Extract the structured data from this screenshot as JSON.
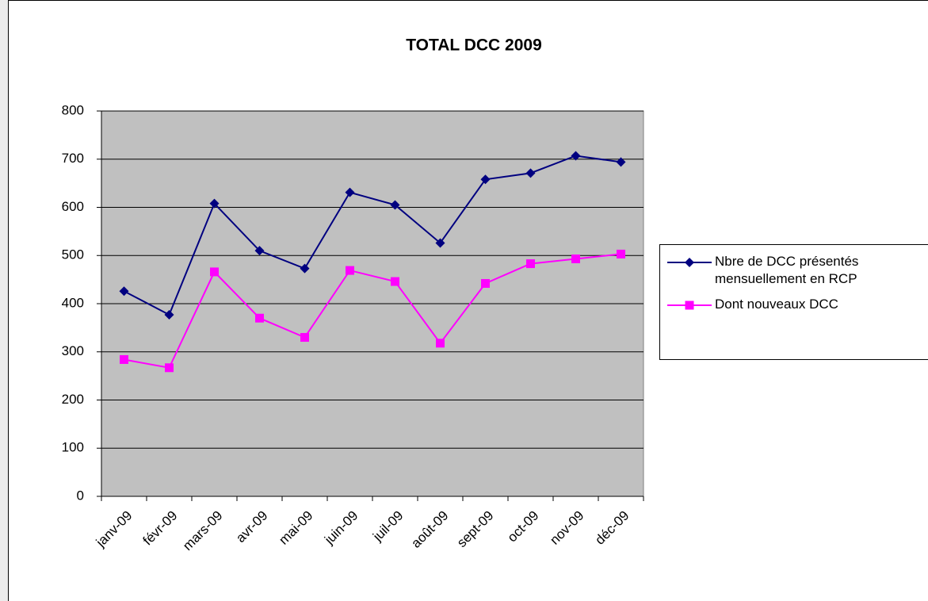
{
  "chart_data": {
    "type": "line",
    "title": "TOTAL DCC 2009",
    "categories": [
      "janv-09",
      "févr-09",
      "mars-09",
      "avr-09",
      "mai-09",
      "juin-09",
      "juil-09",
      "août-09",
      "sept-09",
      "oct-09",
      "nov-09",
      "déc-09"
    ],
    "series": [
      {
        "name": "Nbre de DCC présentés mensuellement en RCP",
        "color": "#000080",
        "marker": "diamond",
        "values": [
          426,
          377,
          608,
          510,
          473,
          631,
          605,
          526,
          658,
          671,
          707,
          694
        ]
      },
      {
        "name": "Dont nouveaux DCC",
        "color": "#ff00ff",
        "marker": "square",
        "values": [
          284,
          267,
          466,
          370,
          330,
          469,
          446,
          318,
          442,
          483,
          493,
          503
        ]
      }
    ],
    "ylim": [
      0,
      800
    ],
    "yticks": [
      0,
      100,
      200,
      300,
      400,
      500,
      600,
      700,
      800
    ],
    "grid": true,
    "legend": "right"
  }
}
